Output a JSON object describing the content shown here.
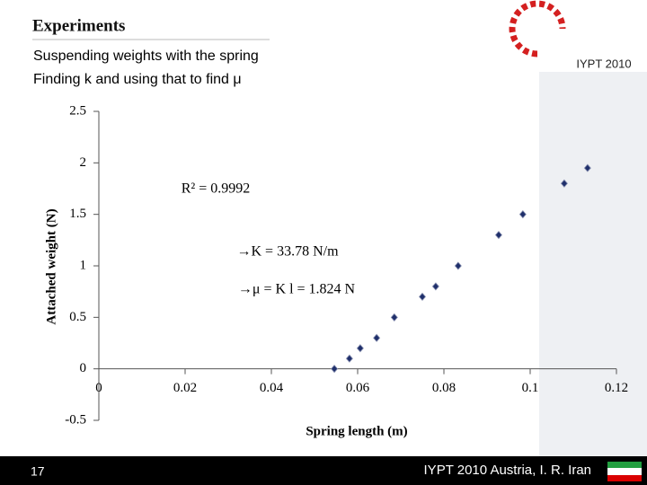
{
  "slide": {
    "title": "Experiments",
    "lines": [
      "Suspending weights with the spring",
      "Finding k and using that to find μ"
    ],
    "page_number": "17",
    "footer": "IYPT 2010 Austria, I. R. Iran",
    "logo": "IYPT 2010"
  },
  "chart_data": {
    "type": "scatter",
    "x": [
      0.0546,
      0.0581,
      0.0606,
      0.0644,
      0.0685,
      0.075,
      0.0781,
      0.0833,
      0.0927,
      0.0983,
      0.1079,
      0.1133
    ],
    "values": [
      0,
      0.1,
      0.2,
      0.3,
      0.5,
      0.7,
      0.8,
      1.0,
      1.3,
      1.5,
      1.8,
      1.95
    ],
    "color": "#1f2f6b",
    "xlim": [
      0,
      0.12
    ],
    "xticks": [
      0,
      0.02,
      0.04,
      0.06,
      0.08,
      0.1,
      0.12
    ],
    "ylim": [
      -0.5,
      2.5
    ],
    "yticks": [
      2.5,
      2,
      1.5,
      1,
      0.5,
      0,
      -0.5
    ],
    "xlabel": "Spring length (m)",
    "ylabel": "Attached weight (N)",
    "annotations": [
      "R² = 0.9992",
      "→K = 33.78 N/m",
      "→μ = K l = 1.824 N"
    ]
  }
}
